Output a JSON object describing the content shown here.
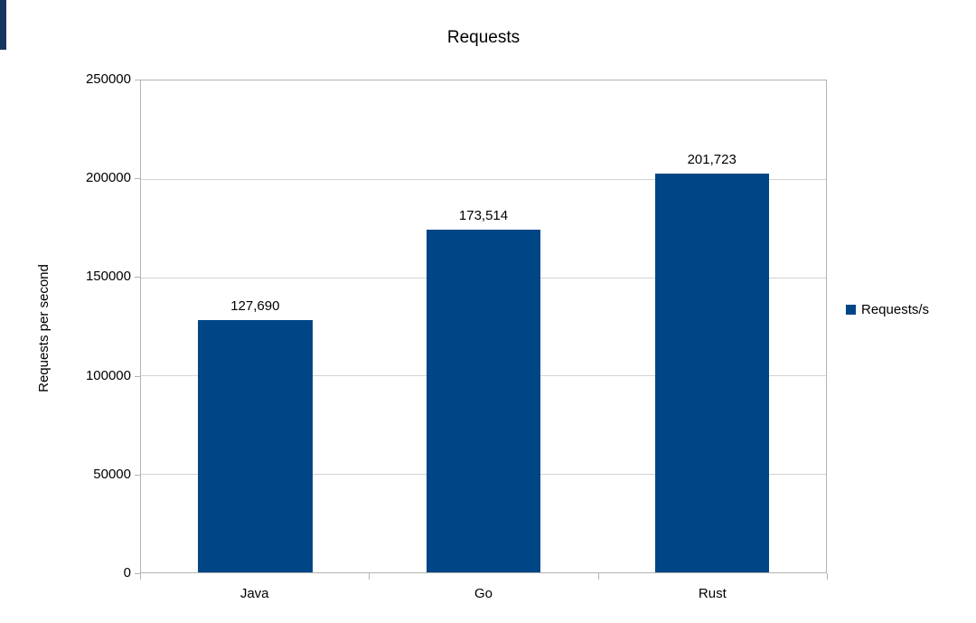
{
  "chart_data": {
    "type": "bar",
    "title": "Requests",
    "ylabel": "Requests per second",
    "xlabel": "",
    "categories": [
      "Java",
      "Go",
      "Rust"
    ],
    "values": [
      127690,
      173514,
      201723
    ],
    "value_labels": [
      "127,690",
      "173,514",
      "201,723"
    ],
    "series": [
      {
        "name": "Requests/s",
        "values": [
          127690,
          173514,
          201723
        ]
      }
    ],
    "ylim": [
      0,
      250000
    ],
    "ytick_interval": 50000,
    "yticks": [
      "250000",
      "200000",
      "150000",
      "100000",
      "50000",
      "0"
    ],
    "grid": "horizontal",
    "legend_position": "right",
    "bar_color": "#004586"
  },
  "legend": {
    "label": "Requests/s"
  }
}
